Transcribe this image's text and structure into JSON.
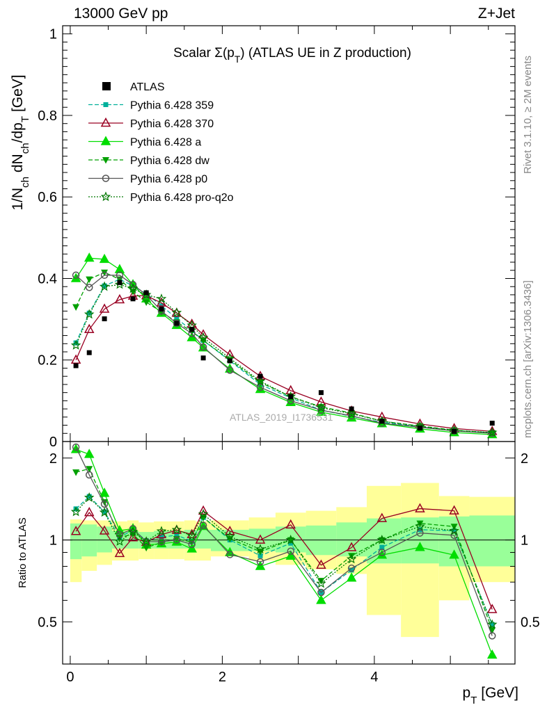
{
  "header": {
    "left": "13000 GeV pp",
    "right": "Z+Jet"
  },
  "side_labels": {
    "rivet": "Rivet 3.1.10, ≥ 2M events",
    "mcplots": "mcplots.cern.ch [arXiv:1306.3436]"
  },
  "watermark": "ATLAS_2019_I1736531",
  "chart_data": {
    "type": "line",
    "title": "Scalar Σ(p_T) (ATLAS UE in Z production)",
    "xlabel": "p_T [GeV]",
    "ylabel": "1/N_ch dN_ch/dp_T [GeV]",
    "ratio_ylabel": "Ratio to ATLAS",
    "xlim": [
      -0.1,
      5.85
    ],
    "ylim": [
      0,
      1.02
    ],
    "ratio_ylim": [
      0.35,
      2.3
    ],
    "x_ticks": [
      0,
      2,
      4
    ],
    "y_ticks": [
      0,
      0.2,
      0.4,
      0.6,
      0.8,
      1
    ],
    "ratio_ticks": [
      0.5,
      1,
      2
    ],
    "legend_position": "top-left",
    "x": [
      0.075,
      0.25,
      0.45,
      0.65,
      0.825,
      1.0,
      1.2,
      1.4,
      1.6,
      1.75,
      2.1,
      2.5,
      2.9,
      3.3,
      3.7,
      4.1,
      4.6,
      5.05,
      5.55
    ],
    "bin_edges": [
      0.0,
      0.15,
      0.35,
      0.55,
      0.75,
      0.9,
      1.1,
      1.3,
      1.5,
      1.65,
      1.85,
      2.35,
      2.7,
      3.1,
      3.5,
      3.9,
      4.35,
      4.85,
      5.25,
      5.85
    ],
    "data": {
      "name": "ATLAS",
      "values": [
        0.186,
        0.218,
        0.301,
        0.39,
        0.35,
        0.365,
        0.325,
        0.29,
        0.275,
        0.205,
        0.198,
        0.16,
        0.11,
        0.12,
        0.08,
        0.05,
        0.033,
        0.025,
        0.045
      ]
    },
    "ratio_band_stat": [
      [
        0.85,
        1.15
      ],
      [
        0.87,
        1.14
      ],
      [
        0.9,
        1.12
      ],
      [
        0.93,
        1.08
      ],
      [
        0.93,
        1.08
      ],
      [
        0.93,
        1.07
      ],
      [
        0.93,
        1.08
      ],
      [
        0.93,
        1.08
      ],
      [
        0.93,
        1.09
      ],
      [
        0.93,
        1.09
      ],
      [
        0.91,
        1.09
      ],
      [
        0.91,
        1.1
      ],
      [
        0.9,
        1.12
      ],
      [
        0.88,
        1.13
      ],
      [
        0.87,
        1.16
      ],
      [
        0.82,
        1.2
      ],
      [
        0.82,
        1.21
      ],
      [
        0.8,
        1.22
      ],
      [
        0.8,
        1.23
      ]
    ],
    "ratio_band_syst": [
      [
        0.7,
        1.19
      ],
      [
        0.77,
        1.18
      ],
      [
        0.81,
        1.18
      ],
      [
        0.84,
        1.17
      ],
      [
        0.84,
        1.18
      ],
      [
        0.85,
        1.16
      ],
      [
        0.85,
        1.17
      ],
      [
        0.85,
        1.17
      ],
      [
        0.84,
        1.18
      ],
      [
        0.84,
        1.17
      ],
      [
        0.87,
        1.18
      ],
      [
        0.84,
        1.21
      ],
      [
        0.81,
        1.26
      ],
      [
        0.78,
        1.28
      ],
      [
        0.75,
        1.32
      ],
      [
        0.53,
        1.58
      ],
      [
        0.44,
        1.62
      ],
      [
        0.6,
        1.45
      ],
      [
        0.7,
        1.44
      ]
    ],
    "series": [
      {
        "name": "Pythia 6.428 359",
        "color": "#00b09b",
        "dash": "6,3",
        "marker": "square",
        "values": [
          0.242,
          0.315,
          0.382,
          0.398,
          0.382,
          0.363,
          0.333,
          0.302,
          0.272,
          0.248,
          0.198,
          0.14,
          0.107,
          0.077,
          0.062,
          0.047,
          0.036,
          0.027,
          0.022
        ]
      },
      {
        "name": "Pythia 6.428 370",
        "color": "#990022",
        "dash": "",
        "marker": "triangle-open",
        "values": [
          0.2,
          0.275,
          0.325,
          0.348,
          0.357,
          0.358,
          0.34,
          0.315,
          0.288,
          0.262,
          0.213,
          0.16,
          0.125,
          0.097,
          0.075,
          0.06,
          0.043,
          0.032,
          0.025
        ]
      },
      {
        "name": "Pythia 6.428 a",
        "color": "#00dd00",
        "dash": "",
        "marker": "triangle",
        "values": [
          0.4,
          0.45,
          0.447,
          0.422,
          0.385,
          0.35,
          0.315,
          0.285,
          0.255,
          0.23,
          0.178,
          0.128,
          0.096,
          0.072,
          0.058,
          0.044,
          0.031,
          0.022,
          0.017
        ]
      },
      {
        "name": "Pythia 6.428 dw",
        "color": "#00a000",
        "dash": "6,3",
        "marker": "triangle-down",
        "values": [
          0.33,
          0.398,
          0.415,
          0.398,
          0.368,
          0.342,
          0.318,
          0.293,
          0.27,
          0.248,
          0.2,
          0.145,
          0.11,
          0.085,
          0.07,
          0.05,
          0.038,
          0.028,
          0.021
        ]
      },
      {
        "name": "Pythia 6.428 p0",
        "color": "#555555",
        "dash": "",
        "marker": "circle-open",
        "values": [
          0.408,
          0.378,
          0.408,
          0.408,
          0.385,
          0.36,
          0.32,
          0.29,
          0.265,
          0.232,
          0.175,
          0.133,
          0.1,
          0.077,
          0.063,
          0.045,
          0.035,
          0.026,
          0.02
        ]
      },
      {
        "name": "Pythia 6.428 pro-q2o",
        "color": "#007700",
        "dash": "2,2",
        "marker": "star",
        "values": [
          0.236,
          0.312,
          0.38,
          0.385,
          0.375,
          0.36,
          0.35,
          0.316,
          0.285,
          0.255,
          0.204,
          0.148,
          0.11,
          0.083,
          0.068,
          0.05,
          0.037,
          0.027,
          0.022
        ]
      }
    ]
  }
}
